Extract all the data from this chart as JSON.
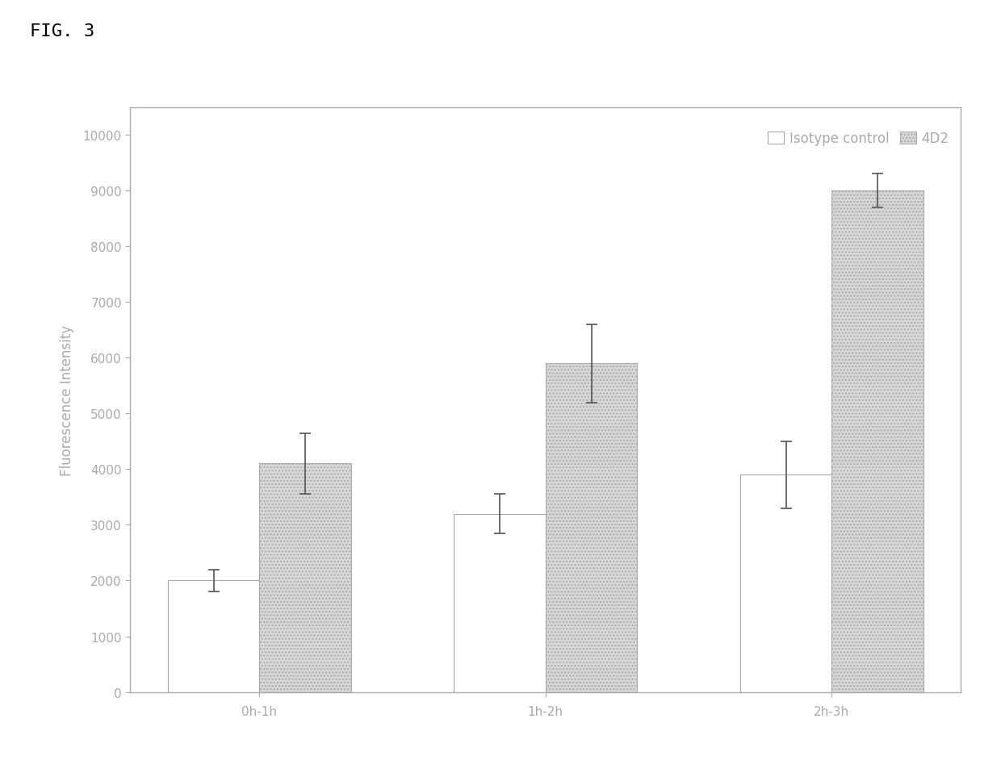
{
  "categories": [
    "0h-1h",
    "1h-2h",
    "2h-3h"
  ],
  "isotype_values": [
    2000,
    3200,
    3900
  ],
  "isotype_errors": [
    200,
    350,
    600
  ],
  "fourD2_values": [
    4100,
    5900,
    9000
  ],
  "fourD2_errors": [
    550,
    700,
    300
  ],
  "ylabel": "Fluorescence Intensity",
  "ylim": [
    0,
    10500
  ],
  "yticks": [
    0,
    1000,
    2000,
    3000,
    4000,
    5000,
    6000,
    7000,
    8000,
    9000,
    10000
  ],
  "legend_labels": [
    "Isotype control",
    "4D2"
  ],
  "isotype_color": "#ffffff",
  "isotype_edge": "#aaaaaa",
  "fourD2_hatch": "....",
  "fourD2_color": "#d8d8d8",
  "fourD2_edge": "#aaaaaa",
  "bar_width": 0.32,
  "fig_title": "FIG. 3",
  "background_color": "#ffffff",
  "plot_bg": "#ffffff",
  "error_color": "#555555",
  "font_color": "#aaaaaa",
  "text_color": "#000000",
  "border_color": "#aaaaaa",
  "title_fontsize": 16,
  "axis_fontsize": 12,
  "tick_fontsize": 11,
  "legend_fontsize": 12
}
